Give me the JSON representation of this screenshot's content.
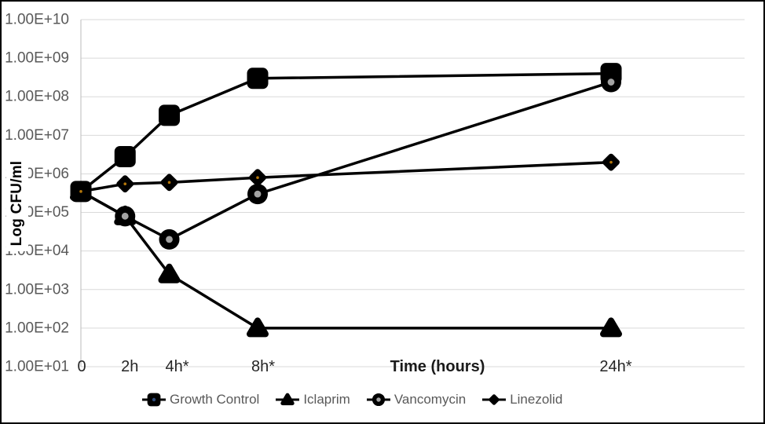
{
  "chart_data": {
    "type": "line",
    "title": "",
    "xlabel": "Time (hours)",
    "ylabel": "Log CFU/ml",
    "y_scale": "log10",
    "ylim": [
      10.0,
      10000000000.0
    ],
    "grid": true,
    "legend_position": "bottom",
    "x_hours": [
      0,
      2,
      4,
      8,
      24
    ],
    "x_tick_labels": [
      "0",
      "2h",
      "4h*",
      "8h*",
      "24h*"
    ],
    "y_tick_labels": [
      "1.00E+10",
      "1.00E+09",
      "1.00E+08",
      "1.00E+07",
      "1.00E+06",
      "1.00E+05",
      "1.00E+04",
      "1.00E+03",
      "1.00E+02",
      "1.00E+01"
    ],
    "series": [
      {
        "name": "Growth Control",
        "marker": "square",
        "values": [
          350000.0,
          2800000.0,
          33000000.0,
          300000000.0,
          400000000.0
        ]
      },
      {
        "name": "Iclaprim",
        "marker": "triangle",
        "values": [
          350000.0,
          80000.0,
          2500.0,
          100.0,
          100.0
        ]
      },
      {
        "name": "Vancomycin",
        "marker": "circle",
        "values": [
          350000.0,
          80000.0,
          20000.0,
          300000.0,
          240000000.0
        ]
      },
      {
        "name": "Linezolid",
        "marker": "diamond",
        "values": [
          350000.0,
          550000.0,
          600000.0,
          800000.0,
          2000000.0
        ]
      }
    ],
    "colors": {
      "line": "#000000",
      "grid": "#d9d9d9",
      "axis": "#c6c6c6",
      "y_tick_label": "#595959",
      "x_tick_label": "#262626",
      "x_axis_title": "#1a1a1a",
      "legend_text": "#595959",
      "circle_dot": "#a3a3a3",
      "diamond_dot": "#b5770a",
      "legend_square_dot": "#2f4b7c",
      "background": "#ffffff",
      "border": "#000000"
    }
  }
}
